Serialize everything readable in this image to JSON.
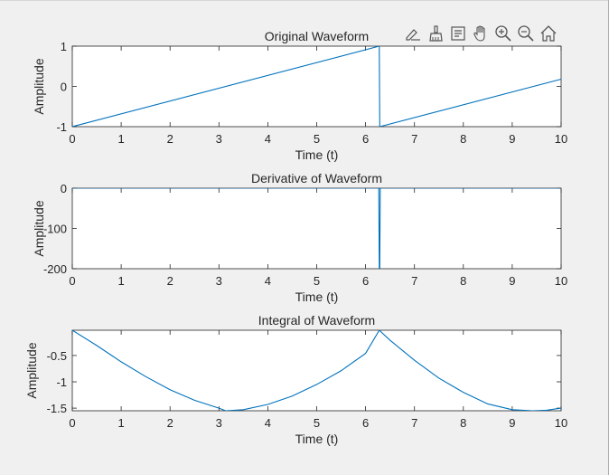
{
  "figure": {
    "toolbar": [
      {
        "name": "edit-plot-icon"
      },
      {
        "name": "brush-icon"
      },
      {
        "name": "data-tips-icon"
      },
      {
        "name": "pan-icon"
      },
      {
        "name": "zoom-in-icon"
      },
      {
        "name": "zoom-out-icon"
      },
      {
        "name": "home-icon"
      }
    ],
    "colors": {
      "line": "#0072bd",
      "axis": "#262626",
      "grid_bg": "#ffffff",
      "figure_bg": "#f0f0f0"
    }
  },
  "chart_data": [
    {
      "type": "line",
      "title": "Original Waveform",
      "xlabel": "Time (t)",
      "ylabel": "Amplitude",
      "xlim": [
        0,
        10
      ],
      "ylim": [
        -1,
        1
      ],
      "xticks": [
        0,
        1,
        2,
        3,
        4,
        5,
        6,
        7,
        8,
        9,
        10
      ],
      "yticks": [
        -1,
        0,
        1
      ],
      "ytick_labels": [
        "-1",
        "0",
        "1"
      ],
      "grid": false,
      "series": [
        {
          "x": [
            0,
            6.28,
            6.29,
            10
          ],
          "y": [
            -1,
            1,
            -1,
            0.18
          ]
        }
      ]
    },
    {
      "type": "line",
      "title": "Derivative of Waveform",
      "xlabel": "Time (t)",
      "ylabel": "Amplitude",
      "xlim": [
        0,
        10
      ],
      "ylim": [
        -200,
        0
      ],
      "xticks": [
        0,
        1,
        2,
        3,
        4,
        5,
        6,
        7,
        8,
        9,
        10
      ],
      "yticks": [
        -200,
        -100,
        0
      ],
      "ytick_labels": [
        "-200",
        "-100",
        "0"
      ],
      "grid": false,
      "series": [
        {
          "x": [
            0,
            6.27,
            6.28,
            6.29,
            6.3,
            10
          ],
          "y": [
            0.32,
            0.32,
            -200,
            -200,
            0.32,
            0.32
          ]
        }
      ]
    },
    {
      "type": "line",
      "title": "Integral of Waveform",
      "xlabel": "Time (t)",
      "ylabel": "Amplitude",
      "xlim": [
        0,
        10
      ],
      "ylim": [
        -1.55,
        -0.02
      ],
      "xticks": [
        0,
        1,
        2,
        3,
        4,
        5,
        6,
        7,
        8,
        9,
        10
      ],
      "yticks": [
        -1.5,
        -1,
        -0.5
      ],
      "ytick_labels": [
        "-1.5",
        "-1",
        "-0.5"
      ],
      "grid": false,
      "series": [
        {
          "x": [
            0,
            0.5,
            1,
            1.5,
            2,
            2.5,
            3,
            3.14,
            3.5,
            4,
            4.5,
            5,
            5.5,
            6,
            6.28,
            6.5,
            7,
            7.5,
            8,
            8.5,
            9,
            9.42,
            9.7,
            10
          ],
          "y": [
            -0.02,
            -0.31,
            -0.62,
            -0.9,
            -1.15,
            -1.35,
            -1.5,
            -1.55,
            -1.53,
            -1.43,
            -1.27,
            -1.05,
            -0.79,
            -0.46,
            -0.02,
            -0.21,
            -0.59,
            -0.93,
            -1.2,
            -1.42,
            -1.53,
            -1.55,
            -1.54,
            -1.5
          ]
        }
      ]
    }
  ]
}
